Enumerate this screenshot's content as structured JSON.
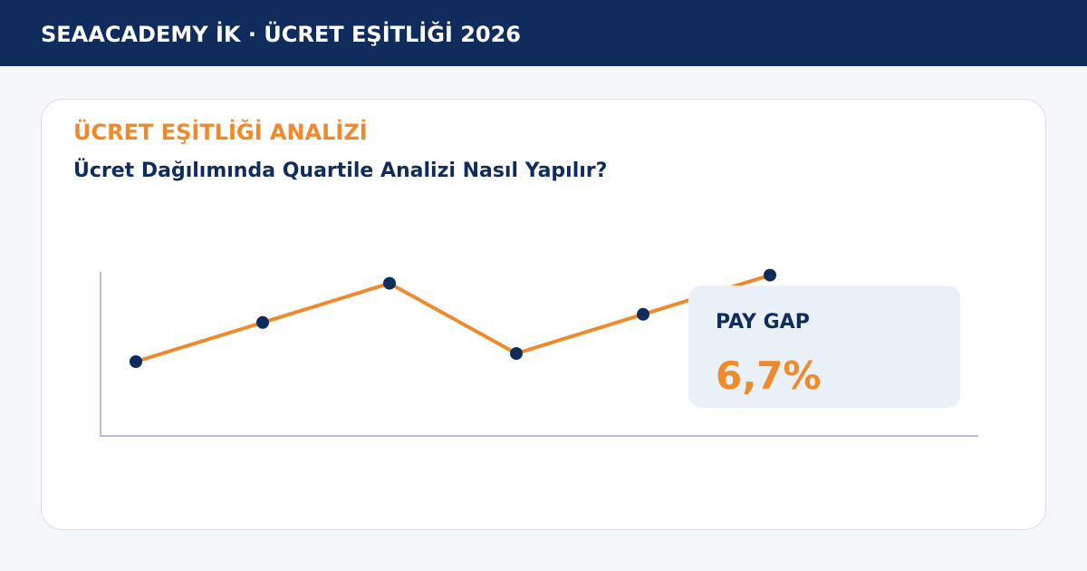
{
  "header": {
    "title": "SEAACADEMY İK · ÜCRET EŞİTLİĞİ 2026"
  },
  "card": {
    "kicker": "ÜCRET EŞİTLİĞİ ANALİZİ",
    "title": "Ücret Dağılımında Quartile Analizi Nasıl Yapılır?",
    "stat": {
      "label": "PAY GAP",
      "value": "6,7%"
    }
  },
  "chart_data": {
    "type": "line",
    "categories": [
      null,
      null,
      null,
      null,
      null,
      null
    ],
    "values": [
      45,
      69,
      93,
      50,
      74,
      98
    ],
    "color": "#ef8a2c",
    "marker_color": "#0f2c5c",
    "ylim": [
      0,
      100
    ]
  }
}
